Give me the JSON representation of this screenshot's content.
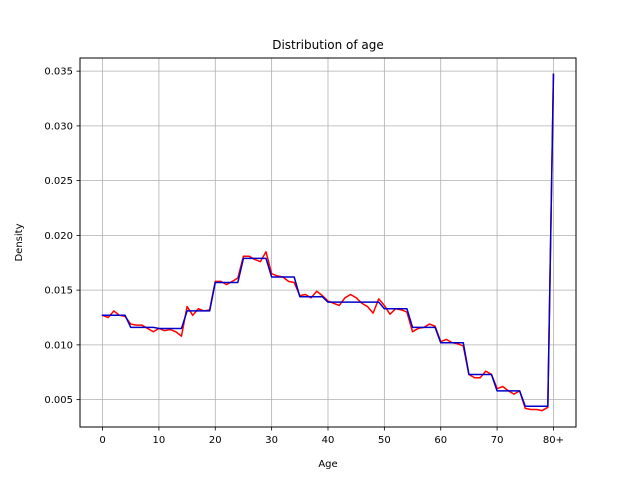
{
  "chart_data": {
    "type": "line",
    "title": "Distribution of age",
    "xlabel": "Age",
    "ylabel": "Density",
    "xlim": [
      -4,
      84
    ],
    "ylim": [
      0.0025,
      0.0362
    ],
    "grid": true,
    "xticks": [
      0,
      10,
      20,
      30,
      40,
      50,
      60,
      70,
      80
    ],
    "xtick_labels": [
      "0",
      "10",
      "20",
      "30",
      "40",
      "50",
      "60",
      "70",
      "80+"
    ],
    "yticks": [
      0.005,
      0.01,
      0.015,
      0.02,
      0.025,
      0.03,
      0.035
    ],
    "ytick_labels": [
      "0.005",
      "0.010",
      "0.015",
      "0.020",
      "0.025",
      "0.030",
      "0.035"
    ],
    "series": [
      {
        "color": "#ff0000",
        "x": [
          0,
          1,
          2,
          3,
          4,
          5,
          6,
          7,
          8,
          9,
          10,
          11,
          12,
          13,
          14,
          15,
          16,
          17,
          18,
          19,
          20,
          21,
          22,
          23,
          24,
          25,
          26,
          27,
          28,
          29,
          30,
          31,
          32,
          33,
          34,
          35,
          36,
          37,
          38,
          39,
          40,
          41,
          42,
          43,
          44,
          45,
          46,
          47,
          48,
          49,
          50,
          51,
          52,
          53,
          54,
          55,
          56,
          57,
          58,
          59,
          60,
          61,
          62,
          63,
          64,
          65,
          66,
          67,
          68,
          69,
          70,
          71,
          72,
          73,
          74,
          75,
          76,
          77,
          78,
          79,
          80
        ],
        "y": [
          0.0127,
          0.0125,
          0.0131,
          0.0127,
          0.0126,
          0.0119,
          0.0118,
          0.0118,
          0.0115,
          0.0112,
          0.0115,
          0.0113,
          0.0114,
          0.0112,
          0.0108,
          0.0135,
          0.0127,
          0.0133,
          0.0131,
          0.0132,
          0.0158,
          0.0158,
          0.0155,
          0.0158,
          0.0161,
          0.0181,
          0.0181,
          0.0178,
          0.0176,
          0.0185,
          0.0165,
          0.0163,
          0.0162,
          0.0158,
          0.0157,
          0.0145,
          0.0146,
          0.0143,
          0.0149,
          0.0145,
          0.014,
          0.0138,
          0.0136,
          0.0143,
          0.0146,
          0.0143,
          0.0138,
          0.0135,
          0.0129,
          0.0142,
          0.0136,
          0.0128,
          0.0133,
          0.0132,
          0.013,
          0.0112,
          0.0115,
          0.0116,
          0.0119,
          0.0117,
          0.0103,
          0.0105,
          0.0102,
          0.0101,
          0.0099,
          0.0073,
          0.007,
          0.007,
          0.0076,
          0.0073,
          0.006,
          0.0062,
          0.0058,
          0.0055,
          0.0058,
          0.0042,
          0.0041,
          0.0041,
          0.004,
          0.0043,
          0.0347
        ]
      },
      {
        "color": "#0000cc",
        "x": [
          0,
          1,
          2,
          3,
          4,
          5,
          6,
          7,
          8,
          9,
          10,
          11,
          12,
          13,
          14,
          15,
          16,
          17,
          18,
          19,
          20,
          21,
          22,
          23,
          24,
          25,
          26,
          27,
          28,
          29,
          30,
          31,
          32,
          33,
          34,
          35,
          36,
          37,
          38,
          39,
          40,
          41,
          42,
          43,
          44,
          45,
          46,
          47,
          48,
          49,
          50,
          51,
          52,
          53,
          54,
          55,
          56,
          57,
          58,
          59,
          60,
          61,
          62,
          63,
          64,
          65,
          66,
          67,
          68,
          69,
          70,
          71,
          72,
          73,
          74,
          75,
          76,
          77,
          78,
          79,
          80
        ],
        "y": [
          0.0127,
          0.0127,
          0.0127,
          0.0127,
          0.0127,
          0.0116,
          0.0116,
          0.0116,
          0.0116,
          0.0116,
          0.0115,
          0.0115,
          0.0115,
          0.0115,
          0.0115,
          0.0131,
          0.0131,
          0.0131,
          0.0131,
          0.0131,
          0.0157,
          0.0157,
          0.0157,
          0.0157,
          0.0157,
          0.0179,
          0.0179,
          0.0179,
          0.0179,
          0.0179,
          0.0162,
          0.0162,
          0.0162,
          0.0162,
          0.0162,
          0.0144,
          0.0144,
          0.0144,
          0.0144,
          0.0144,
          0.0139,
          0.0139,
          0.0139,
          0.0139,
          0.0139,
          0.0139,
          0.0139,
          0.0139,
          0.0139,
          0.0139,
          0.0133,
          0.0133,
          0.0133,
          0.0133,
          0.0133,
          0.0116,
          0.0116,
          0.0116,
          0.0116,
          0.0116,
          0.0102,
          0.0102,
          0.0102,
          0.0102,
          0.0102,
          0.0073,
          0.0073,
          0.0073,
          0.0073,
          0.0073,
          0.0058,
          0.0058,
          0.0058,
          0.0058,
          0.0058,
          0.0044,
          0.0044,
          0.0044,
          0.0044,
          0.0044,
          0.0347
        ]
      }
    ]
  }
}
